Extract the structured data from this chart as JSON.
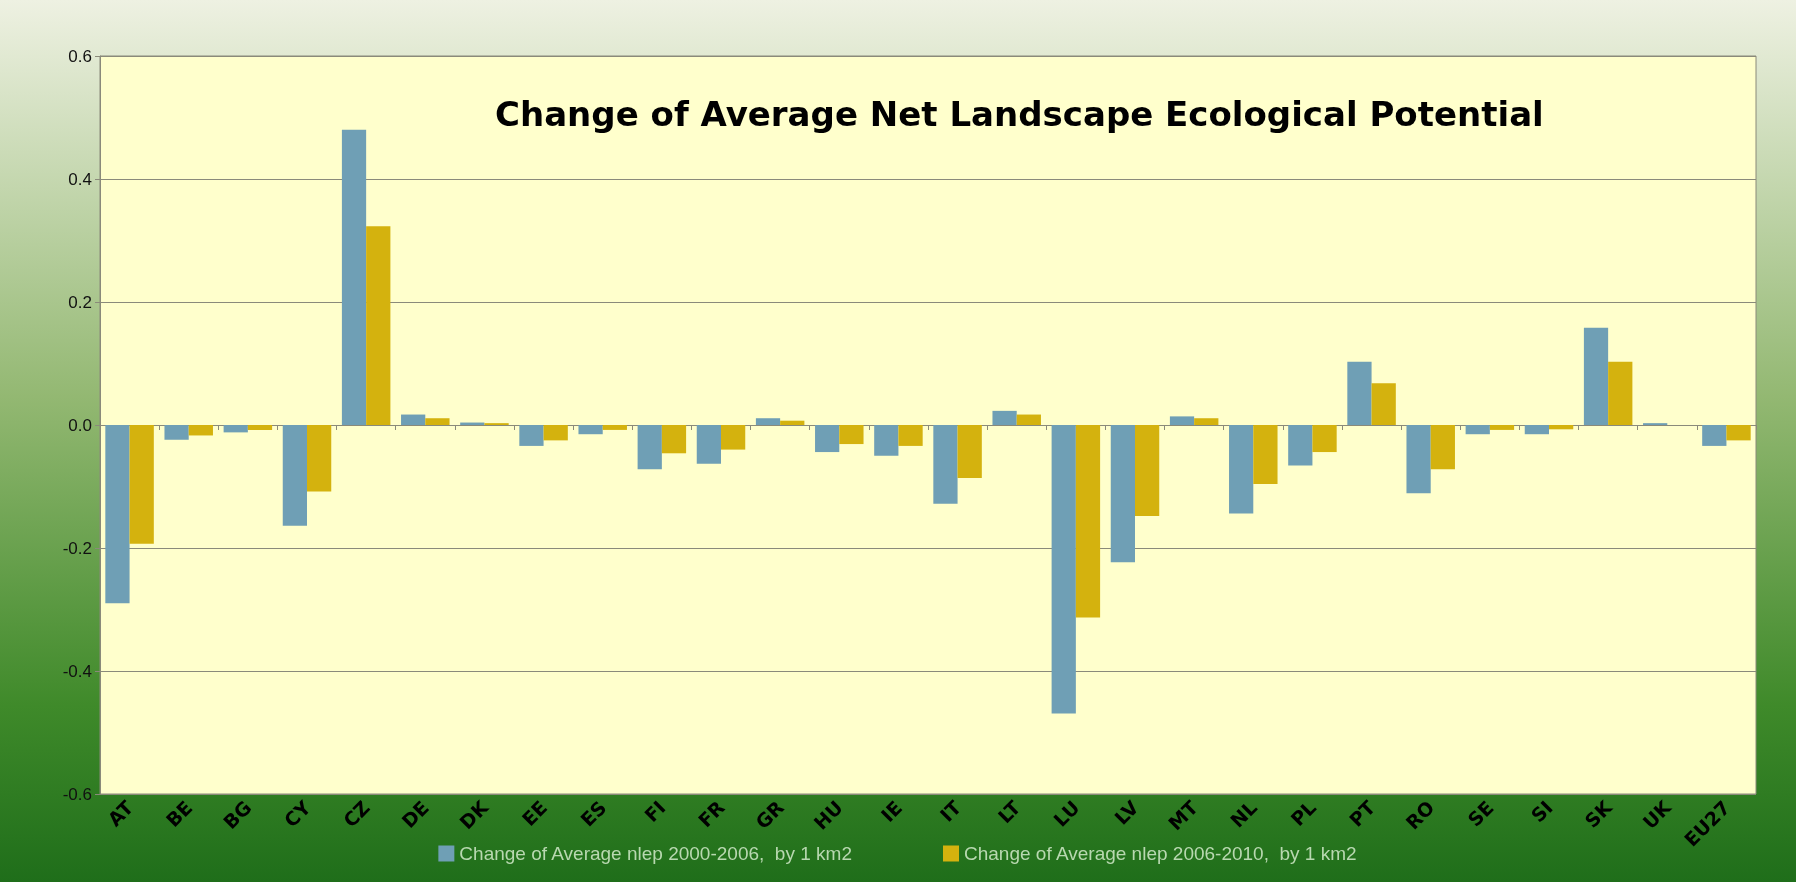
{
  "chart_data": {
    "type": "bar",
    "title": "Change of Average Net Landscape Ecological Potential",
    "categories": [
      "AT",
      "BE",
      "BG",
      "CY",
      "CZ",
      "DE",
      "DK",
      "EE",
      "ES",
      "FI",
      "FR",
      "GR",
      "HU",
      "IE",
      "IT",
      "LT",
      "LU",
      "LV",
      "MT",
      "NL",
      "PL",
      "PT",
      "RO",
      "SE",
      "SI",
      "SK",
      "UK",
      "EU27"
    ],
    "series": [
      {
        "name": "Change of Average nlep 2000-2006,  by 1 km2",
        "color": "#6f9fb5",
        "values": [
          -0.29,
          -0.024,
          -0.012,
          -0.164,
          0.48,
          0.017,
          0.004,
          -0.034,
          -0.015,
          -0.072,
          -0.063,
          0.011,
          -0.044,
          -0.05,
          -0.128,
          0.023,
          -0.469,
          -0.223,
          0.014,
          -0.144,
          -0.066,
          0.103,
          -0.111,
          -0.015,
          -0.015,
          0.158,
          0.003,
          -0.034
        ]
      },
      {
        "name": "Change of Average nlep 2006-2010,  by 1 km2",
        "color": "#d4b20e",
        "values": [
          -0.193,
          -0.017,
          -0.008,
          -0.108,
          0.323,
          0.011,
          0.003,
          -0.025,
          -0.008,
          -0.046,
          -0.04,
          0.007,
          -0.031,
          -0.034,
          -0.086,
          0.017,
          -0.313,
          -0.148,
          0.011,
          -0.096,
          -0.044,
          0.068,
          -0.072,
          -0.008,
          -0.007,
          0.103,
          0,
          -0.025
        ]
      }
    ],
    "ylim": [
      -0.6,
      0.6
    ],
    "yticks": [
      -0.6,
      -0.4,
      -0.2,
      {
        "value": 0,
        "label": "0.0"
      },
      0.2,
      0.4,
      0.6
    ],
    "grid": "y",
    "legend": "bottom"
  }
}
